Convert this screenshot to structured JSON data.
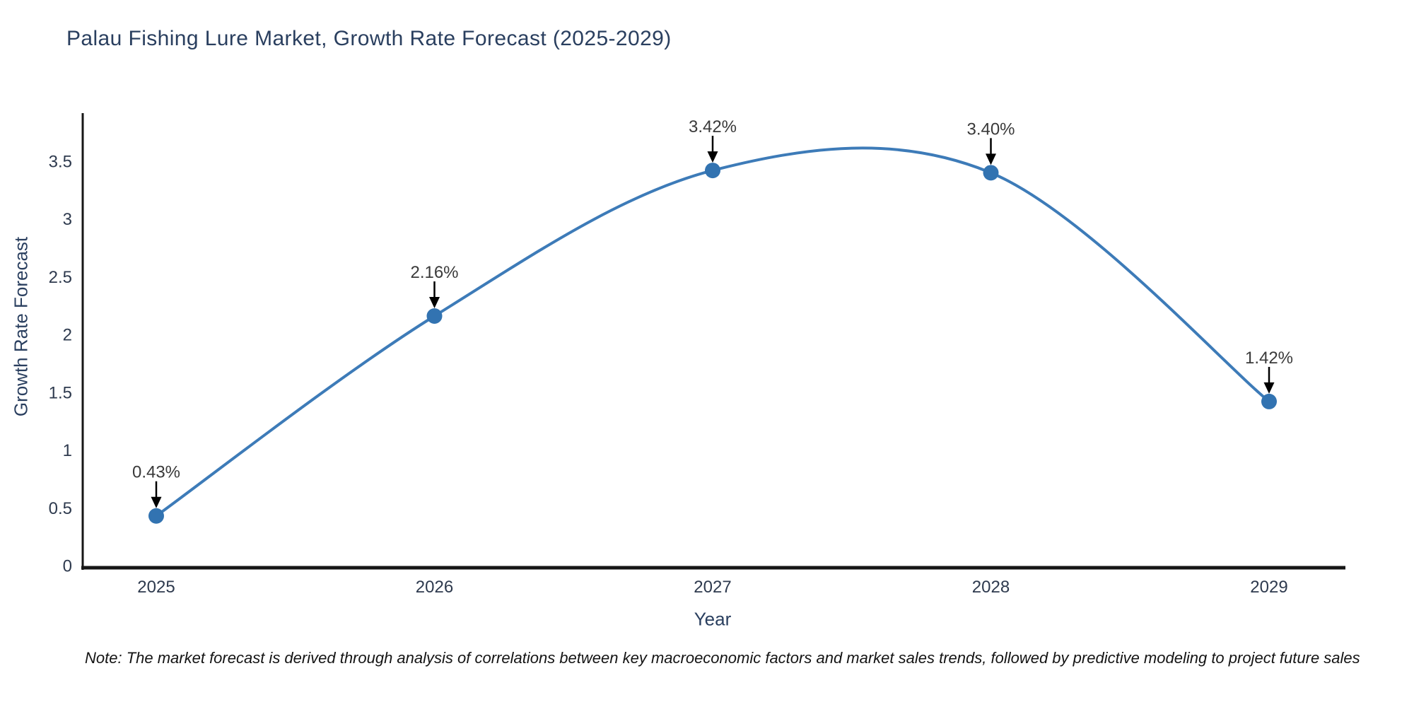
{
  "title": "Palau Fishing Lure Market, Growth Rate Forecast (2025-2029)",
  "note": "Note: The market forecast is derived through analysis of correlations between key macroeconomic factors and market sales trends, followed by predictive modeling to project future sales",
  "chart_data": {
    "type": "line",
    "title": "Palau Fishing Lure Market, Growth Rate Forecast (2025-2029)",
    "xlabel": "Year",
    "ylabel": "Growth Rate Forecast",
    "categories": [
      "2025",
      "2026",
      "2027",
      "2028",
      "2029"
    ],
    "values": [
      0.43,
      2.16,
      3.42,
      3.4,
      1.42
    ],
    "point_labels": [
      "0.43%",
      "2.16%",
      "3.42%",
      "3.40%",
      "1.42%"
    ],
    "ylim": [
      0,
      3.5
    ],
    "yticks": [
      "0",
      "0.5",
      "1",
      "1.5",
      "2",
      "2.5",
      "3",
      "3.5"
    ],
    "grid": false,
    "legend": "none",
    "line_shape": "spline",
    "marker": "circle",
    "annotation_style": "value label with downward black arrow to each point",
    "colors": {
      "line": "#3d7bb8",
      "marker": "#3273b1",
      "axis": "#161616",
      "tick_text": "#2e3a4e",
      "title_text": "#2a3f5f",
      "annotation_text": "#3a3a3a",
      "annotation_arrow": "#000000",
      "note_text": "#141414",
      "background": "#ffffff"
    }
  }
}
